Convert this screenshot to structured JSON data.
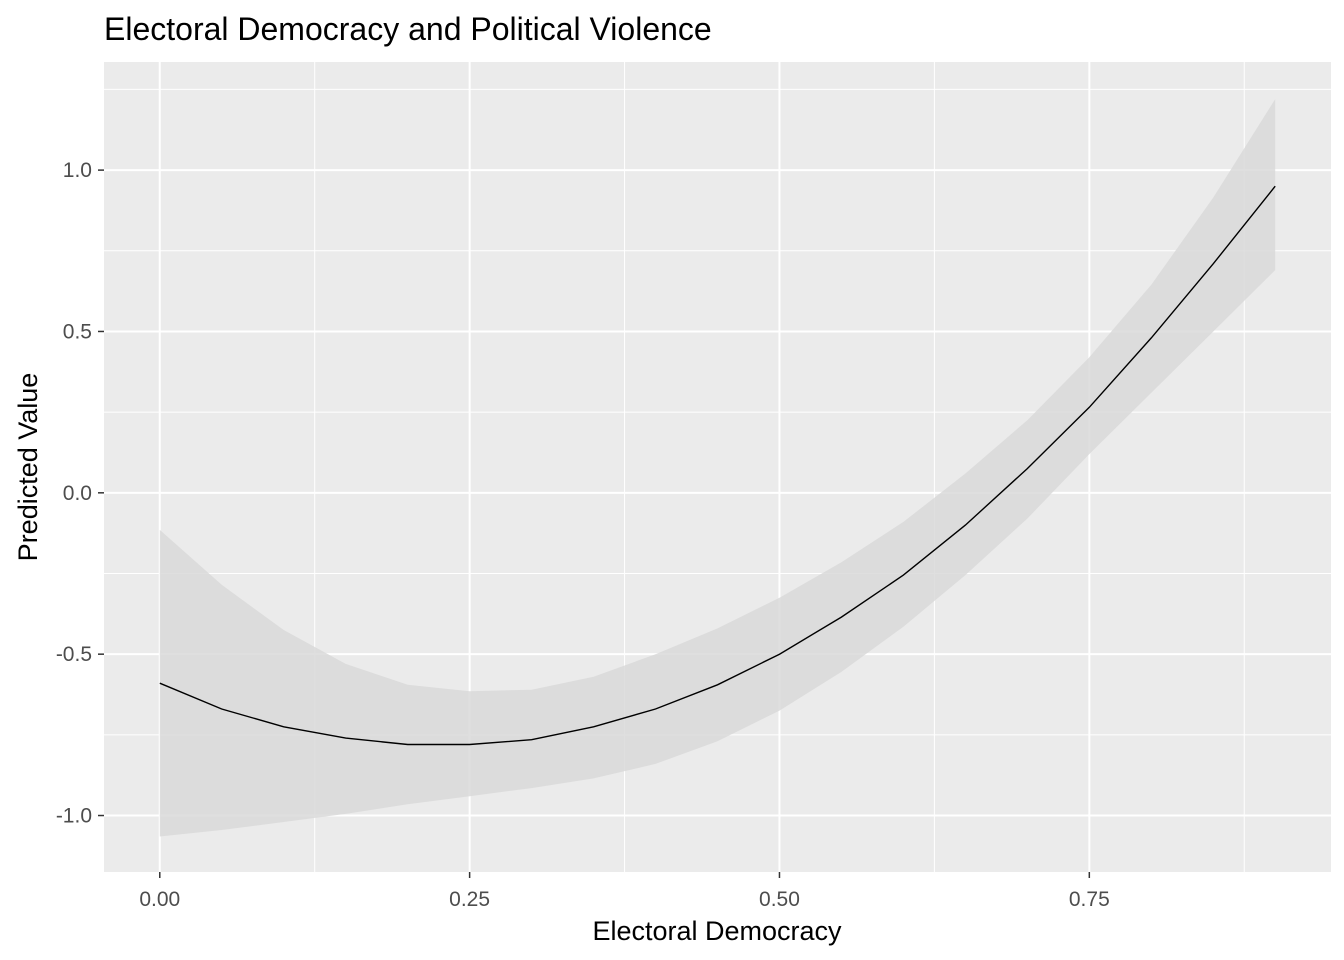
{
  "chart_data": {
    "type": "line",
    "title": "Electoral Democracy and Political Violence",
    "xlabel": "Electoral Democracy",
    "ylabel": "Predicted Value",
    "xlim": [
      -0.045,
      0.945
    ],
    "ylim": [
      -1.175,
      1.335
    ],
    "x_ticks": [
      0.0,
      0.25,
      0.5,
      0.75
    ],
    "x_tick_labels": [
      "0.00",
      "0.25",
      "0.50",
      "0.75"
    ],
    "y_ticks": [
      -1.0,
      -0.5,
      0.0,
      0.5,
      1.0
    ],
    "y_tick_labels": [
      "-1.0",
      "-0.5",
      "0.0",
      "0.5",
      "1.0"
    ],
    "grid": true,
    "colors": {
      "panel": "#ebebeb",
      "grid": "#ffffff",
      "ribbon": "#d9d9d9",
      "line": "#000000"
    },
    "series": [
      {
        "x": [
          0.0,
          0.05,
          0.1,
          0.15,
          0.2,
          0.25,
          0.3,
          0.35,
          0.4,
          0.45,
          0.5,
          0.55,
          0.6,
          0.65,
          0.7,
          0.75,
          0.8,
          0.85,
          0.9
        ],
        "y": [
          -0.59,
          -0.67,
          -0.725,
          -0.76,
          -0.78,
          -0.78,
          -0.765,
          -0.725,
          -0.67,
          -0.595,
          -0.5,
          -0.385,
          -0.255,
          -0.1,
          0.075,
          0.265,
          0.48,
          0.71,
          0.95
        ],
        "lower": [
          -1.065,
          -1.045,
          -1.02,
          -0.995,
          -0.965,
          -0.94,
          -0.915,
          -0.885,
          -0.84,
          -0.77,
          -0.675,
          -0.555,
          -0.415,
          -0.255,
          -0.08,
          0.12,
          0.31,
          0.5,
          0.69
        ],
        "upper": [
          -0.115,
          -0.285,
          -0.425,
          -0.53,
          -0.595,
          -0.615,
          -0.61,
          -0.57,
          -0.5,
          -0.42,
          -0.325,
          -0.215,
          -0.09,
          0.06,
          0.225,
          0.42,
          0.645,
          0.915,
          1.22
        ]
      }
    ]
  }
}
